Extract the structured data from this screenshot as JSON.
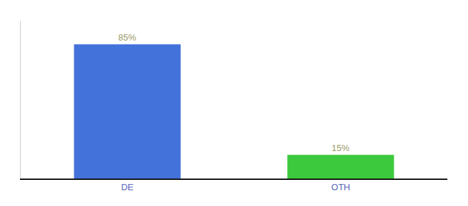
{
  "chart_data": {
    "type": "bar",
    "categories": [
      "DE",
      "OTH"
    ],
    "values": [
      85,
      15
    ],
    "value_labels": [
      "85%",
      "15%"
    ],
    "data_labels": true,
    "colors": [
      "#4472db",
      "#3dc93d"
    ],
    "ylim": [
      0,
      100
    ],
    "yticks": [],
    "tick_labels": "x",
    "grid": false
  }
}
